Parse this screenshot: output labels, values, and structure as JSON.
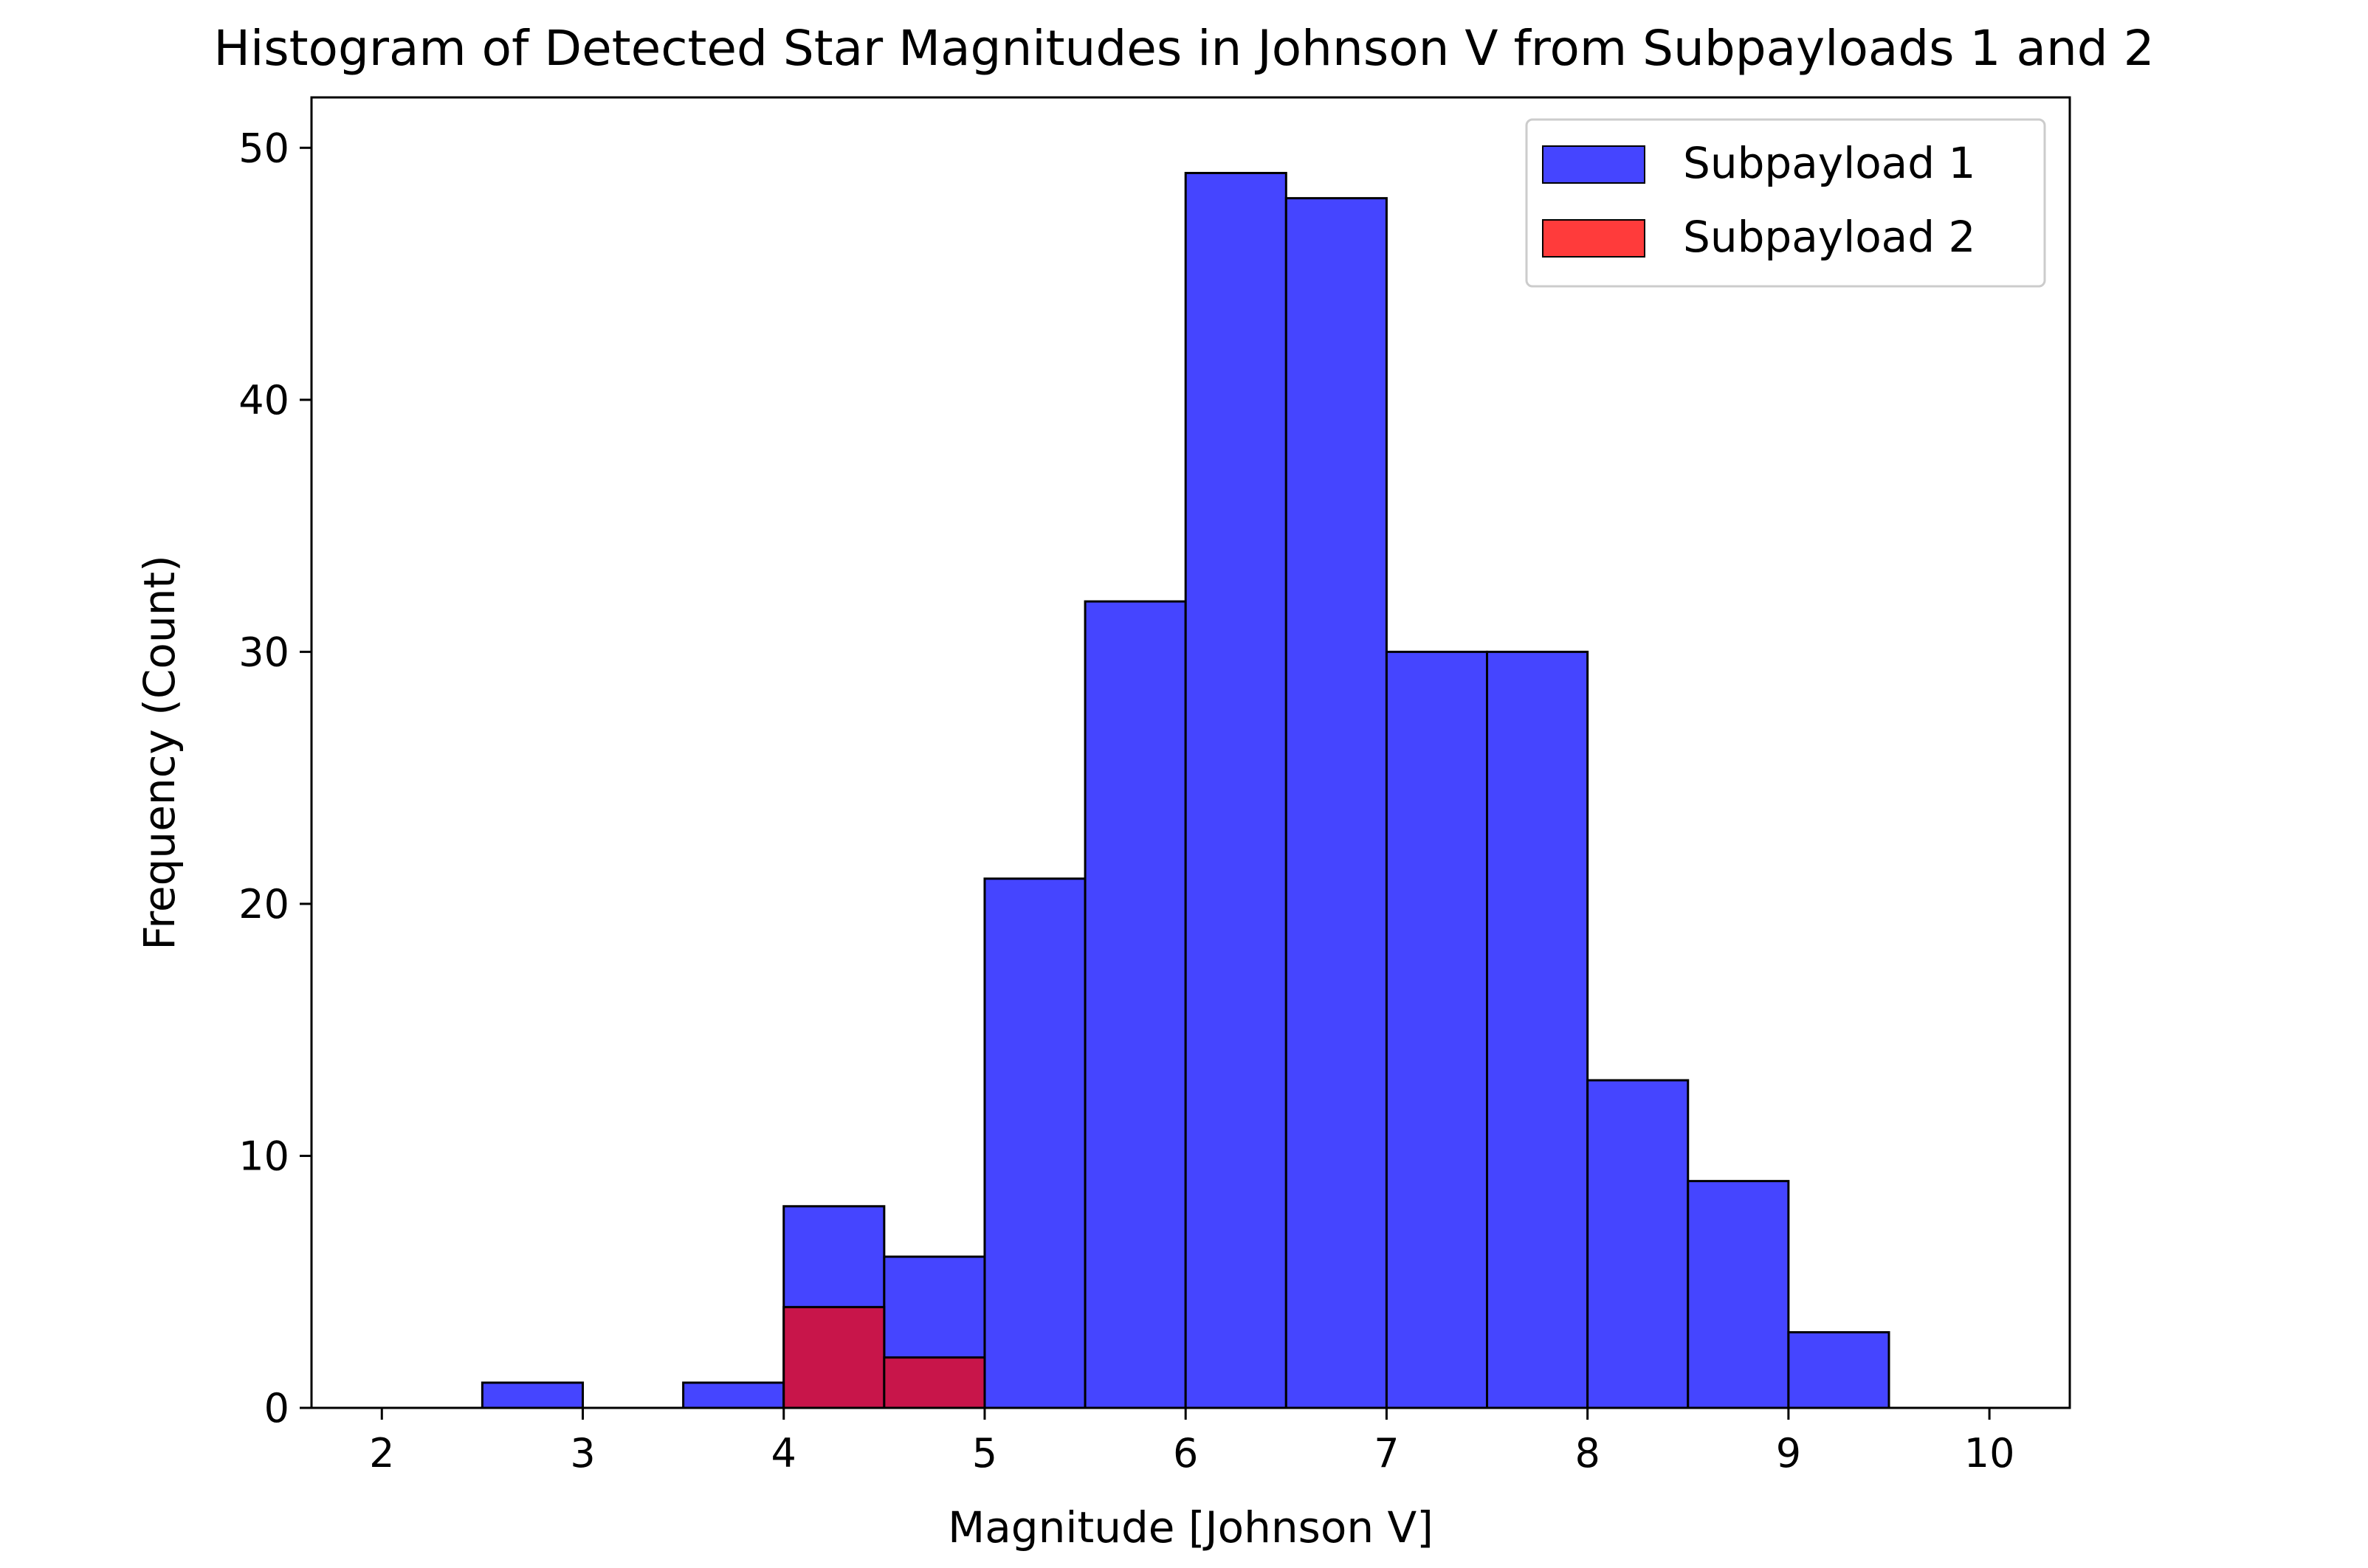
{
  "chart_data": {
    "type": "bar",
    "title": "Histogram of Detected Star Magnitudes in Johnson V from Subpayloads 1 and 2",
    "xlabel": "Magnitude [Johnson V]",
    "ylabel": "Frequency (Count)",
    "xlim": [
      1.65,
      10.4
    ],
    "ylim": [
      0,
      52
    ],
    "xticks": [
      2,
      3,
      4,
      5,
      6,
      7,
      8,
      9,
      10
    ],
    "yticks": [
      0,
      10,
      20,
      30,
      40,
      50
    ],
    "bin_edges": [
      2.0,
      2.5,
      3.0,
      3.5,
      4.0,
      4.5,
      5.0,
      5.5,
      6.0,
      6.5,
      7.0,
      7.5,
      8.0,
      8.5,
      9.0,
      9.5,
      10.0
    ],
    "series": [
      {
        "name": "Subpayload 1",
        "color": "#4545ff",
        "counts": [
          0,
          1,
          0,
          1,
          8,
          6,
          21,
          32,
          49,
          48,
          30,
          30,
          13,
          9,
          3,
          0
        ]
      },
      {
        "name": "Subpayload 2",
        "color": "#ff3b3b",
        "overlap_color": "#c8154a",
        "counts": [
          0,
          0,
          0,
          0,
          4,
          2,
          0,
          0,
          0,
          0,
          0,
          0,
          0,
          0,
          0,
          0
        ]
      }
    ],
    "legend_position": "top-right",
    "grid": false
  }
}
